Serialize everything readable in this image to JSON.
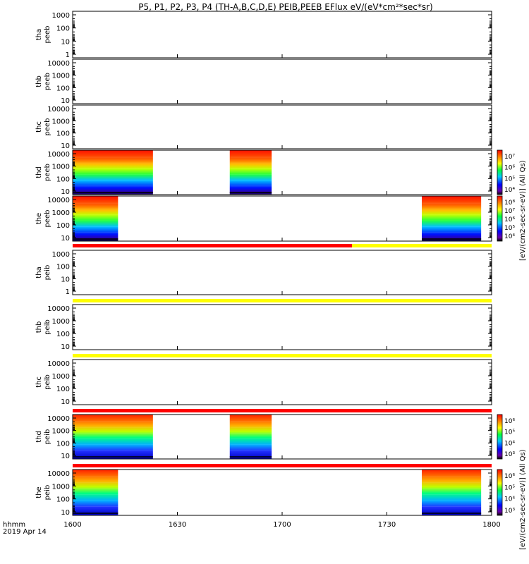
{
  "title": "P5, P1, P2, P3, P4 (TH-A,B,C,D,E) PEIB,PEEB EFlux eV/(eV*cm²*sec*sr)",
  "time_label_line1": "hhmm",
  "time_label_line2": "2019 Apr 14",
  "x_ticks": [
    "1600",
    "1630",
    "1700",
    "1730",
    "1800"
  ],
  "colorbar_label_e": "[eV/(cm2-sec-sr-eV)] (All Qs)",
  "colorbar_label_i": "[eV/(cm2-sec-sr-eV)] (All Qs)",
  "colorbar_e_ticks": [
    "10⁷",
    "10⁶",
    "10⁵",
    "10⁴",
    "10⁸",
    "10⁷",
    "10⁶",
    "10⁵",
    "10⁴"
  ],
  "colorbar_i_ticks": [
    "10⁶",
    "10⁵",
    "10⁴",
    "10³",
    "10⁶",
    "10⁵",
    "10⁴",
    "10³"
  ],
  "colors": {
    "flag_red": "#ff0000",
    "flag_yellow": "#ffff00"
  },
  "chart_data": {
    "type": "heatmap",
    "x_range": [
      "16:00",
      "18:00"
    ],
    "panels": [
      {
        "probe": "tha",
        "species": "peeb",
        "y_ticks": [
          "1000",
          "100",
          "10",
          "1"
        ],
        "log": true,
        "spectrogram_intervals": []
      },
      {
        "probe": "thb",
        "species": "peeb",
        "y_ticks": [
          "10000",
          "1000",
          "100",
          "10"
        ],
        "log": true,
        "spectrogram_intervals": []
      },
      {
        "probe": "thc",
        "species": "peeb",
        "y_ticks": [
          "10000",
          "1000",
          "100",
          "10"
        ],
        "log": true,
        "spectrogram_intervals": []
      },
      {
        "probe": "thd",
        "species": "peeb",
        "y_ticks": [
          "10000",
          "1000",
          "100",
          "10"
        ],
        "log": true,
        "spectrogram_intervals": [
          [
            "16:00",
            "16:23"
          ],
          [
            "16:45",
            "16:57"
          ]
        ]
      },
      {
        "probe": "the",
        "species": "peeb",
        "y_ticks": [
          "10000",
          "1000",
          "100",
          "10"
        ],
        "log": true,
        "spectrogram_intervals": [
          [
            "16:00",
            "16:13"
          ],
          [
            "17:40",
            "17:57"
          ]
        ]
      },
      {
        "probe": "tha",
        "species": "peib",
        "y_ticks": [
          "1000",
          "100",
          "10",
          "1"
        ],
        "log": true,
        "spectrogram_intervals": []
      },
      {
        "probe": "thb",
        "species": "peib",
        "y_ticks": [
          "10000",
          "1000",
          "100",
          "10"
        ],
        "log": true,
        "spectrogram_intervals": []
      },
      {
        "probe": "thc",
        "species": "peib",
        "y_ticks": [
          "10000",
          "1000",
          "100",
          "10"
        ],
        "log": true,
        "spectrogram_intervals": []
      },
      {
        "probe": "thd",
        "species": "peib",
        "y_ticks": [
          "10000",
          "1000",
          "100",
          "10"
        ],
        "log": true,
        "spectrogram_intervals": [
          [
            "16:00",
            "16:23"
          ],
          [
            "16:45",
            "16:57"
          ]
        ]
      },
      {
        "probe": "the",
        "species": "peib",
        "y_ticks": [
          "10000",
          "1000",
          "100",
          "10"
        ],
        "log": true,
        "spectrogram_intervals": [
          [
            "16:00",
            "16:13"
          ],
          [
            "17:40",
            "17:57"
          ]
        ]
      }
    ]
  }
}
